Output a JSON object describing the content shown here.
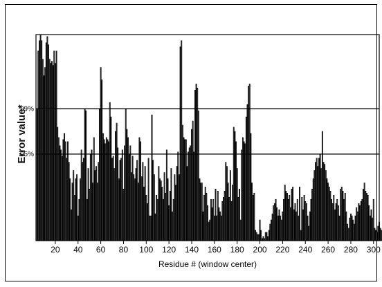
{
  "chart_data": {
    "type": "bar",
    "xlabel": "Residue # (window center)",
    "ylabel": "Error value*",
    "xlim": [
      3,
      305
    ],
    "ylim": [
      0,
      1.0
    ],
    "x_ticks": [
      20,
      40,
      60,
      80,
      100,
      120,
      140,
      160,
      180,
      200,
      220,
      240,
      260,
      280,
      300
    ],
    "reference_lines": [
      {
        "label": "99%",
        "value": 0.64
      },
      {
        "label": "95%",
        "value": 0.42
      }
    ],
    "grid": false,
    "x_start": 4,
    "values": [
      0.64,
      0.92,
      0.97,
      1.0,
      0.97,
      0.88,
      0.8,
      0.84,
      0.96,
      0.99,
      0.95,
      0.88,
      0.86,
      0.87,
      0.85,
      0.92,
      0.86,
      0.92,
      0.55,
      0.5,
      0.46,
      0.44,
      0.41,
      0.49,
      0.52,
      0.48,
      0.4,
      0.48,
      0.38,
      0.3,
      0.15,
      0.28,
      0.34,
      0.22,
      0.3,
      0.32,
      0.12,
      0.2,
      0.3,
      0.44,
      0.38,
      0.4,
      0.64,
      0.63,
      0.2,
      0.35,
      0.25,
      0.42,
      0.44,
      0.28,
      0.5,
      0.34,
      0.36,
      0.28,
      0.38,
      0.64,
      0.84,
      0.78,
      0.52,
      0.49,
      0.47,
      0.5,
      0.49,
      0.48,
      0.67,
      0.6,
      0.4,
      0.41,
      0.35,
      0.53,
      0.57,
      0.45,
      0.3,
      0.39,
      0.4,
      0.44,
      0.25,
      0.46,
      0.64,
      0.54,
      0.5,
      0.42,
      0.46,
      0.33,
      0.41,
      0.32,
      0.3,
      0.35,
      0.39,
      0.28,
      0.5,
      0.48,
      0.31,
      0.38,
      0.26,
      0.36,
      0.22,
      0.18,
      0.4,
      0.12,
      0.12,
      0.61,
      0.39,
      0.32,
      0.13,
      0.22,
      0.2,
      0.36,
      0.3,
      0.29,
      0.26,
      0.2,
      0.33,
      0.23,
      0.44,
      0.3,
      0.17,
      0.24,
      0.35,
      0.14,
      0.2,
      0.32,
      0.27,
      0.36,
      0.43,
      0.32,
      0.94,
      0.97,
      0.56,
      0.5,
      0.49,
      0.49,
      0.36,
      0.43,
      0.45,
      0.46,
      0.54,
      0.58,
      0.43,
      0.73,
      0.76,
      0.74,
      0.63,
      0.3,
      0.28,
      0.28,
      0.14,
      0.22,
      0.26,
      0.23,
      0.17,
      0.09,
      0.1,
      0.2,
      0.16,
      0.2,
      0.12,
      0.25,
      0.12,
      0.24,
      0.16,
      0.14,
      0.12,
      0.19,
      0.21,
      0.24,
      0.38,
      0.36,
      0.28,
      0.21,
      0.34,
      0.19,
      0.27,
      0.55,
      0.53,
      0.48,
      0.35,
      0.21,
      0.25,
      0.1,
      0.44,
      0.5,
      0.48,
      0.47,
      0.6,
      0.66,
      0.75,
      0.76,
      0.52,
      0.28,
      0.22,
      0.23,
      0.05,
      0.04,
      0.03,
      0.03,
      0.1,
      0.05,
      0.01,
      0.02,
      0.01,
      0.04,
      0.04,
      0.02,
      0.05,
      0.08,
      0.1,
      0.13,
      0.17,
      0.18,
      0.2,
      0.16,
      0.12,
      0.15,
      0.12,
      0.1,
      0.14,
      0.2,
      0.27,
      0.24,
      0.23,
      0.2,
      0.22,
      0.16,
      0.25,
      0.26,
      0.15,
      0.18,
      0.14,
      0.2,
      0.12,
      0.26,
      0.05,
      0.21,
      0.15,
      0.22,
      0.19,
      0.18,
      0.12,
      0.07,
      0.14,
      0.2,
      0.25,
      0.3,
      0.34,
      0.38,
      0.4,
      0.36,
      0.4,
      0.42,
      0.35,
      0.53,
      0.38,
      0.37,
      0.34,
      0.3,
      0.28,
      0.26,
      0.24,
      0.2,
      0.18,
      0.22,
      0.15,
      0.18,
      0.2,
      0.17,
      0.12,
      0.25,
      0.26,
      0.24,
      0.2,
      0.23,
      0.14,
      0.08,
      0.06,
      0.11,
      0.13,
      0.12,
      0.1,
      0.08,
      0.12,
      0.16,
      0.14,
      0.18,
      0.17,
      0.19,
      0.2,
      0.25,
      0.28,
      0.24,
      0.23,
      0.22,
      0.17,
      0.12,
      0.15,
      0.11,
      0.2,
      0.06,
      0.05,
      0.04,
      0.07,
      0.09,
      0.06,
      0.05,
      0.08,
      0.09,
      0.04,
      0.1,
      0.12,
      0.1,
      0.08,
      0.07,
      0.06,
      0.05,
      0.08,
      0.08,
      0.05,
      0.1,
      0.08,
      0.14,
      0.12,
      0.1,
      0.17,
      0.25,
      0.3
    ]
  }
}
